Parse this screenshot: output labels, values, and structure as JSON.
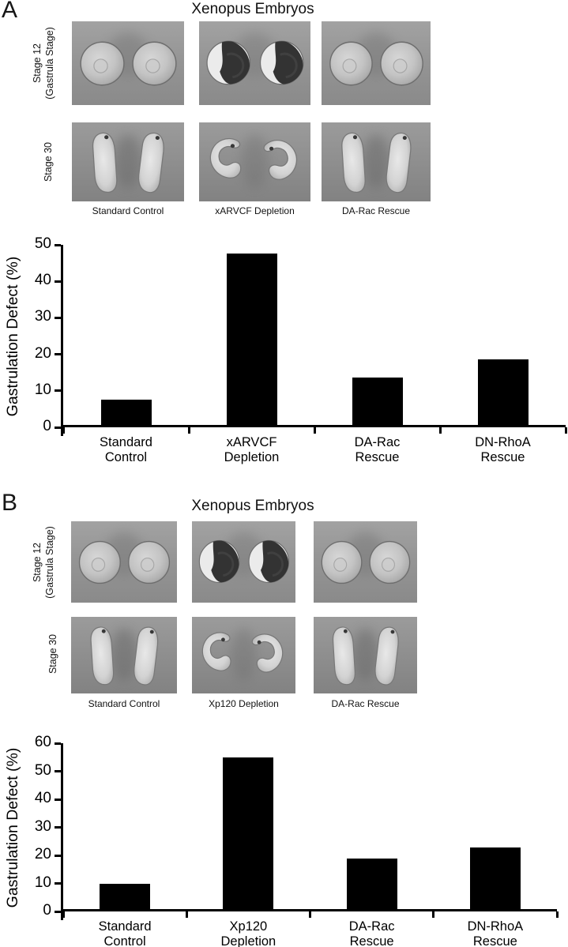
{
  "figure": {
    "panels": [
      {
        "label": "A",
        "title": "Xenopus Embryos",
        "rows": [
          {
            "label_line1": "Stage 12",
            "label_line2": "(Gastrula Stage)"
          },
          {
            "label_line1": "Stage 30",
            "label_line2": ""
          }
        ],
        "captions": [
          "Standard Control",
          "xARVCF Depletion",
          "DA-Rac Rescue"
        ]
      },
      {
        "label": "B",
        "title": "Xenopus Embryos",
        "rows": [
          {
            "label_line1": "Stage 12",
            "label_line2": "(Gastrula Stage)"
          },
          {
            "label_line1": "Stage 30",
            "label_line2": ""
          }
        ],
        "captions": [
          "Standard Control",
          "Xp120 Depletion",
          "DA-Rac Rescue"
        ]
      }
    ]
  },
  "chart_data": [
    {
      "type": "bar",
      "panel": "A",
      "title": "",
      "categories": [
        "Standard Control",
        "xARVCF Depletion",
        "DA-Rac Rescue",
        "DN-RhoA Rescue"
      ],
      "values": [
        7,
        47,
        13,
        18
      ],
      "xlabel": "",
      "ylabel": "Gastrulation Defect (%)",
      "ylim": [
        0,
        50
      ],
      "ytick_step": 10,
      "yticks": [
        0,
        10,
        20,
        30,
        40,
        50
      ],
      "grid": false,
      "legend": false,
      "bar_color": "#000000"
    },
    {
      "type": "bar",
      "panel": "B",
      "title": "",
      "categories": [
        "Standard Control",
        "Xp120 Depletion",
        "DA-Rac Rescue",
        "DN-RhoA Rescue"
      ],
      "values": [
        9,
        54,
        18,
        22
      ],
      "xlabel": "",
      "ylabel": "Gastrulation Defect (%)",
      "ylim": [
        0,
        60
      ],
      "ytick_step": 10,
      "yticks": [
        0,
        10,
        20,
        30,
        40,
        50,
        60
      ],
      "grid": false,
      "legend": false,
      "bar_color": "#000000"
    }
  ]
}
